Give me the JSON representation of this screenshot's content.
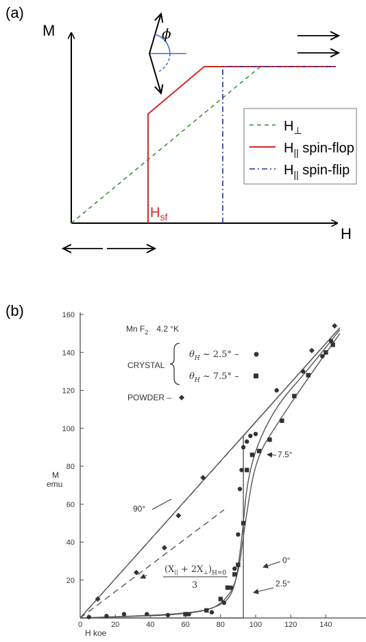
{
  "panel_a": {
    "label": "(a)",
    "y_axis_label": "M",
    "x_axis_label": "H",
    "phi_symbol": "ϕ",
    "hsf_label_main": "H",
    "hsf_label_sub": "sf",
    "legend": [
      {
        "main": "H",
        "sub": "⊥",
        "color": "#2e8b2e",
        "dash": "6,5"
      },
      {
        "main": "H",
        "sub": "||",
        "suffix": " spin-flop",
        "color": "#d62728",
        "dash": ""
      },
      {
        "main": "H",
        "sub": "||",
        "suffix": " spin-flip",
        "color": "#1f2f9e",
        "dash": "8,4,2,4"
      }
    ]
  },
  "panel_b": {
    "label": "(b)",
    "title_line1": "Mn F",
    "title_sub": "2",
    "title_temp": "4.2 °K",
    "legend_crystal": "CRYSTAL",
    "legend_theta1": "θ",
    "legend_theta1_sub": "H",
    "legend_theta1_rest": " ~ 2.5° –",
    "legend_theta2": "θ",
    "legend_theta2_sub": "H",
    "legend_theta2_rest": " ~ 7.5° –",
    "legend_powder": "POWDER –",
    "ylabel": "M",
    "ylabel_unit": "emu",
    "xlabel": "H koe",
    "ann_90": "90°",
    "ann_75": "7.5°",
    "ann_0": "0°",
    "ann_25": "2.5°",
    "ann_formula_num": "(X",
    "ann_formula_sub1": "||",
    "ann_formula_mid": " + 2X",
    "ann_formula_sub2": "⊥",
    "ann_formula_end": ")",
    "ann_formula_h": "H=0",
    "ann_formula_den": "3"
  },
  "chart_data": [
    {
      "type": "line",
      "title": "",
      "xlabel": "H",
      "ylabel": "M",
      "series": [
        {
          "name": "H⊥",
          "x": [
            0,
            10
          ],
          "y": [
            0,
            10
          ]
        },
        {
          "name": "H|| spin-flop",
          "x": [
            0,
            3,
            3,
            5,
            10
          ],
          "y": [
            0,
            0,
            6,
            10,
            10
          ]
        },
        {
          "name": "H|| spin-flip",
          "x": [
            0,
            6,
            6,
            10
          ],
          "y": [
            0,
            0,
            10,
            10
          ]
        }
      ],
      "annotations": [
        "Hsf",
        "ϕ"
      ]
    },
    {
      "type": "scatter",
      "title": "Mn F2 4.2 °K",
      "xlabel": "H koe",
      "ylabel": "M emu",
      "xlim": [
        0,
        150
      ],
      "ylim": [
        0,
        160
      ],
      "xticks": [
        0,
        20,
        40,
        60,
        80,
        100,
        120,
        140
      ],
      "yticks": [
        20,
        40,
        60,
        80,
        100,
        120,
        140,
        160
      ],
      "series": [
        {
          "name": "θH ~ 2.5°",
          "x": [
            5,
            15,
            25,
            38,
            50,
            62,
            75,
            82,
            86,
            88,
            90,
            91,
            92,
            93,
            95,
            97,
            100,
            112,
            127,
            138,
            143
          ],
          "y": [
            0.5,
            1,
            2,
            2,
            1.5,
            2,
            3,
            8,
            16,
            26,
            44,
            68,
            78,
            90,
            93,
            96,
            97,
            120,
            130,
            138,
            146
          ]
        },
        {
          "name": "θH ~ 7.5°",
          "x": [
            60,
            72,
            80,
            84,
            88,
            90,
            93,
            95,
            98,
            102,
            108,
            115,
            122,
            130,
            140,
            144
          ],
          "y": [
            2,
            4,
            10,
            16,
            23,
            28,
            50,
            78,
            86,
            88,
            94,
            104,
            117,
            128,
            140,
            144
          ]
        },
        {
          "name": "POWDER",
          "x": [
            10,
            32,
            48,
            56,
            70,
            132,
            145
          ],
          "y": [
            10,
            24,
            37,
            54,
            74,
            141,
            154
          ]
        }
      ],
      "lines": [
        {
          "name": "90°",
          "x": [
            0,
            148
          ],
          "y": [
            0,
            153
          ]
        },
        {
          "name": "0°",
          "x": [
            0,
            93,
            93,
            148
          ],
          "y": [
            0,
            0,
            96,
            153
          ]
        },
        {
          "name": "(X|| + 2X⊥)H=0 / 3",
          "x": [
            0,
            82
          ],
          "y": [
            0,
            57
          ]
        }
      ]
    }
  ]
}
